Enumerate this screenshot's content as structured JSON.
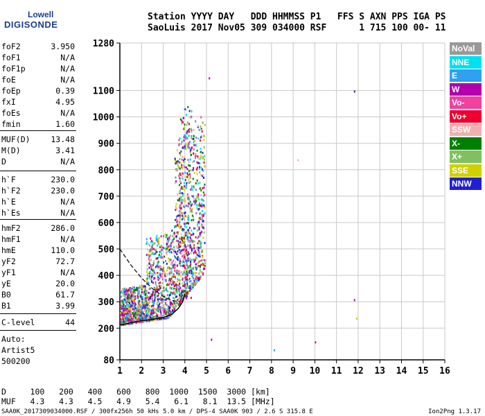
{
  "logo": {
    "line1": "Lowell",
    "line2": "DIGISONDE"
  },
  "header": {
    "line1": "Station YYYY DAY   DDD HHMMSS P1   FFS S AXN PPS IGA PS",
    "line2": "SaoLuis 2017 Nov05 309 034000 RSF      1 715 100 00- 11"
  },
  "params": [
    {
      "name": "foF2",
      "value": "3.950"
    },
    {
      "name": "foF1",
      "value": "N/A"
    },
    {
      "name": "foF1p",
      "value": "N/A"
    },
    {
      "name": "foE",
      "value": "N/A"
    },
    {
      "name": "foEp",
      "value": "0.39"
    },
    {
      "name": "fxI",
      "value": "4.95"
    },
    {
      "name": "foEs",
      "value": "N/A"
    },
    {
      "name": "fmin",
      "value": "1.60"
    },
    {
      "name": "MUF(D)",
      "value": "13.48"
    },
    {
      "name": "M(D)",
      "value": "3.41"
    },
    {
      "name": "D",
      "value": "N/A"
    },
    {
      "name": "h`F",
      "value": "230.0"
    },
    {
      "name": "h`F2",
      "value": "230.0"
    },
    {
      "name": "h`E",
      "value": "N/A"
    },
    {
      "name": "h`Es",
      "value": "N/A"
    },
    {
      "name": "hmF2",
      "value": "286.0"
    },
    {
      "name": "hmF1",
      "value": "N/A"
    },
    {
      "name": "hmE",
      "value": "110.0"
    },
    {
      "name": "yF2",
      "value": "72.7"
    },
    {
      "name": "yF1",
      "value": "N/A"
    },
    {
      "name": "yE",
      "value": "20.0"
    },
    {
      "name": "B0",
      "value": "61.7"
    },
    {
      "name": "B1",
      "value": "3.99"
    },
    {
      "name": "C-level",
      "value": "44"
    }
  ],
  "auto": {
    "line1": "Auto:",
    "line2": "Artist5",
    "line3": "500200"
  },
  "legend": [
    {
      "label": "NoVal",
      "color": "#999999"
    },
    {
      "label": "NNE",
      "color": "#00e0f0"
    },
    {
      "label": "E",
      "color": "#30a0f0"
    },
    {
      "label": "W",
      "color": "#b000b0"
    },
    {
      "label": "Vo-",
      "color": "#f040a0"
    },
    {
      "label": "Vo+",
      "color": "#f00030"
    },
    {
      "label": "SSW",
      "color": "#f0b0b0"
    },
    {
      "label": "X-",
      "color": "#008000"
    },
    {
      "label": "X+",
      "color": "#80c060"
    },
    {
      "label": "SSE",
      "color": "#d0d000"
    },
    {
      "label": "NNW",
      "color": "#2020d0"
    }
  ],
  "chart_data": {
    "type": "scatter",
    "xlim": [
      1,
      16
    ],
    "ylim": [
      80,
      1280
    ],
    "x_ticks": [
      1,
      2,
      3,
      4,
      5,
      6,
      7,
      8,
      9,
      10,
      11,
      12,
      13,
      14,
      15,
      16
    ],
    "y_ticks": [
      80,
      200,
      300,
      400,
      500,
      600,
      700,
      800,
      900,
      1000,
      1100,
      1280
    ],
    "grid": true,
    "trace_lower": {
      "x": [
        1.0,
        1.5,
        2.0,
        2.5,
        3.0,
        3.4,
        3.7,
        3.9,
        4.0
      ],
      "y": [
        212,
        220,
        228,
        233,
        240,
        252,
        275,
        300,
        330
      ]
    },
    "trace_profile": {
      "x": [
        1.0,
        1.5,
        2.0,
        2.5,
        3.0,
        3.4,
        3.8
      ],
      "y": [
        500,
        440,
        390,
        350,
        320,
        305,
        300
      ]
    }
  },
  "dtable": {
    "line1": "D     100   200   400   600   800  1000  1500  3000 [km]",
    "line2": "MUF   4.3   4.3   4.5   4.9   5.4   6.1   8.1  13.5 [MHz]"
  },
  "footer": "SAA0K_2017309034000.RSF / 300fx256h 50 kHs 5.0 km / DPS-4 SAA0K 903 / 2.6 S 315.8 E",
  "version": "Ion2Png 1.3.17"
}
